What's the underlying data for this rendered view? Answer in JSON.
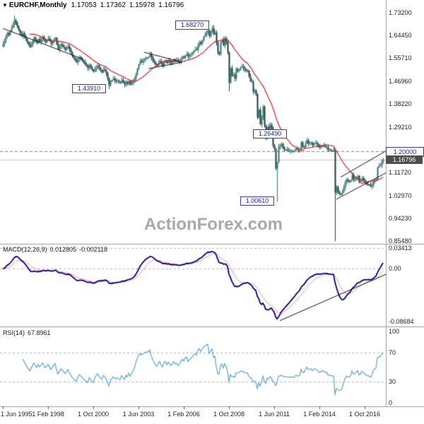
{
  "header": {
    "dropdown_icon": "▼",
    "symbol": "EURCHF,Monthly",
    "open": "1.17053",
    "high": "1.17362",
    "low": "1.15978",
    "close": "1.16796"
  },
  "watermark": "ActionForex.com",
  "panes": {
    "macd": {
      "name": "MACD(12,26,9)",
      "value_main": "0.012805",
      "value_signal": "-0.002118"
    },
    "rsi": {
      "name": "RSI(14)",
      "value": "67.8961"
    }
  },
  "price_axis": {
    "ticks": [
      "1.73200",
      "1.64450",
      "1.55710",
      "1.46960",
      "1.38220",
      "1.29210",
      "1.11720",
      "1.02970",
      "0.94230",
      "0.85480"
    ],
    "level_box": "1.20000",
    "last_box": "1.16796"
  },
  "macd_axis": {
    "ticks": [
      "0.03413",
      "0.00",
      "-0.08684"
    ]
  },
  "rsi_axis": {
    "ticks": [
      "100",
      "70",
      "30",
      "0"
    ]
  },
  "time_axis": {
    "ticks": [
      "1 Jun 1995",
      "1 Feb 1998",
      "1 Oct 2000",
      "1 Jun 2003",
      "1 Feb 2006",
      "1 Oct 2008",
      "1 Jun 2011",
      "1 Feb 2014",
      "1 Oct 2016"
    ],
    "month_indices": [
      0,
      32,
      64,
      96,
      128,
      160,
      192,
      224,
      256
    ]
  },
  "chart_data": {
    "type": "candlestick",
    "symbol": "EURCHF",
    "timeframe": "Monthly",
    "start_month": "1995-06",
    "end_month": "2017-11",
    "first_open": 1.601,
    "closes": [
      1.612,
      1.625,
      1.641,
      1.654,
      1.647,
      1.661,
      1.673,
      1.686,
      1.703,
      1.694,
      1.68,
      1.667,
      1.652,
      1.642,
      1.653,
      1.643,
      1.632,
      1.62,
      1.61,
      1.6,
      1.611,
      1.623,
      1.636,
      1.626,
      1.616,
      1.631,
      1.62,
      1.629,
      1.639,
      1.629,
      1.619,
      1.626,
      1.633,
      1.623,
      1.613,
      1.621,
      1.629,
      1.636,
      1.611,
      1.591,
      1.601,
      1.611,
      1.606,
      1.599,
      1.589,
      1.596,
      1.603,
      1.591,
      1.579,
      1.566,
      1.559,
      1.549,
      1.541,
      1.553,
      1.561,
      1.556,
      1.549,
      1.541,
      1.533,
      1.526,
      1.519,
      1.531,
      1.523,
      1.513,
      1.506,
      1.516,
      1.523,
      1.529,
      1.519,
      1.511,
      1.503,
      1.513,
      1.509,
      1.499,
      1.479,
      1.453,
      1.469,
      1.473,
      1.479,
      1.473,
      1.469,
      1.471,
      1.466,
      1.463,
      1.473,
      1.463,
      1.456,
      1.466,
      1.459,
      1.469,
      1.456,
      1.463,
      1.469,
      1.479,
      1.496,
      1.516,
      1.533,
      1.546,
      1.541,
      1.549,
      1.553,
      1.559,
      1.559,
      1.563,
      1.573,
      1.559,
      1.549,
      1.541,
      1.533,
      1.529,
      1.539,
      1.546,
      1.536,
      1.529,
      1.544,
      1.549,
      1.539,
      1.549,
      1.543,
      1.539,
      1.546,
      1.553,
      1.546,
      1.549,
      1.543,
      1.546,
      1.556,
      1.563,
      1.559,
      1.569,
      1.573,
      1.563,
      1.569,
      1.573,
      1.579,
      1.586,
      1.591,
      1.589,
      1.609,
      1.619,
      1.613,
      1.626,
      1.641,
      1.649,
      1.656,
      1.663,
      1.643,
      1.659,
      1.673,
      1.649,
      1.656,
      1.616,
      1.579,
      1.573,
      1.619,
      1.629,
      1.606,
      1.633,
      1.619,
      1.579,
      1.463,
      1.519,
      1.489,
      1.493,
      1.479,
      1.516,
      1.509,
      1.513,
      1.523,
      1.526,
      1.519,
      1.513,
      1.511,
      1.509,
      1.487,
      1.469,
      1.466,
      1.429,
      1.433,
      1.419,
      1.329,
      1.359,
      1.303,
      1.329,
      1.371,
      1.299,
      1.249,
      1.293,
      1.283,
      1.301,
      1.289,
      1.223,
      1.209,
      1.133,
      1.157,
      1.217,
      1.221,
      1.227,
      1.215,
      1.205,
      1.205,
      1.204,
      1.201,
      1.201,
      1.201,
      1.201,
      1.201,
      1.209,
      1.207,
      1.205,
      1.207,
      1.234,
      1.218,
      1.216,
      1.229,
      1.241,
      1.23,
      1.231,
      1.233,
      1.222,
      1.231,
      1.231,
      1.226,
      1.222,
      1.215,
      1.218,
      1.22,
      1.219,
      1.215,
      1.216,
      1.206,
      1.206,
      1.203,
      1.203,
      1.202,
      1.04,
      1.062,
      1.044,
      1.036,
      1.034,
      1.041,
      1.06,
      1.079,
      1.091,
      1.086,
      1.083,
      1.088,
      1.109,
      1.092,
      1.093,
      1.098,
      1.105,
      1.081,
      1.084,
      1.096,
      1.089,
      1.082,
      1.075,
      1.072,
      1.071,
      1.064,
      1.069,
      1.084,
      1.089,
      1.093,
      1.138,
      1.143,
      1.145,
      1.161,
      1.168
    ],
    "wick_overrides": {
      "8": {
        "high": 1.722
      },
      "75": {
        "low": 1.4391
      },
      "148": {
        "high": 1.6827
      },
      "160": {
        "low": 1.4301
      },
      "194": {
        "low": 1.0061
      },
      "235": {
        "low": 0.8548
      }
    },
    "price_range": {
      "top": 1.732,
      "bottom": 0.8548
    },
    "levels": {
      "level": 1.2,
      "last": 1.16796
    },
    "ma": {
      "type": "sma",
      "period": 20
    },
    "macd": {
      "fast": 12,
      "slow": 26,
      "signal": 9,
      "range": {
        "top": 0.04,
        "bottom": -0.0946
      },
      "gridlines": [
        0.03413,
        0
      ]
    },
    "rsi": {
      "period": 14,
      "levels": [
        70,
        30
      ]
    },
    "colors": {
      "ma": "#d02020",
      "macd": "#000080",
      "macd_signal": "#ff9090",
      "rsi": "#5aa2d2",
      "candle_up": "#3c7070",
      "candle_down": "#173f3f",
      "trendline": "#111111",
      "grid_dash": "#b4b4b4",
      "level_dash": "#808080",
      "last_line": "#c8c8c8",
      "border": "#9a9a9a"
    },
    "annotations": {
      "price_labels": [
        {
          "text": "1.68270",
          "value": 1.6827,
          "anchor_index": 148
        },
        {
          "text": "1.43910",
          "value": 1.4391,
          "anchor_index": 75
        },
        {
          "text": "1.26490",
          "value": 1.2649,
          "anchor_index": 203
        },
        {
          "text": "1.00610",
          "value": 1.0061,
          "anchor_index": 194
        }
      ],
      "price_trendlines": [
        [
          0,
          1.672,
          57,
          1.553
        ],
        [
          100,
          1.58,
          127,
          1.542
        ],
        [
          103,
          1.517,
          127,
          1.542
        ],
        [
          236,
          1.015,
          274,
          1.125
        ],
        [
          239,
          1.1,
          274,
          1.21
        ]
      ],
      "macd_trendline": [
        196,
        -0.085,
        272,
        -0.008
      ]
    }
  }
}
